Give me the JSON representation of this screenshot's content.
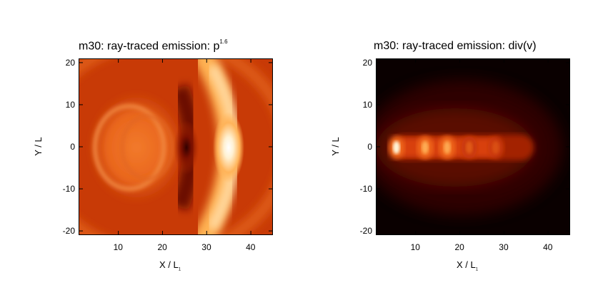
{
  "chart_data": [
    {
      "type": "heatmap",
      "title_main": "m30: ray-traced emission: p",
      "title_sup": "1.6",
      "xlabel_main": "X / L",
      "xlabel_sub": "1",
      "ylabel": "Y / L",
      "xlim": [
        1,
        45
      ],
      "ylim": [
        -21,
        21
      ],
      "xticks": [
        "10",
        "20",
        "30",
        "40"
      ],
      "xtick_values": [
        10,
        20,
        30,
        40
      ],
      "yticks": [
        "20",
        "10",
        "0",
        "-10",
        "-20"
      ],
      "ytick_values": [
        20,
        10,
        0,
        -10,
        -20
      ],
      "colormap": "hot",
      "background_color": "#c83a06",
      "features": [
        {
          "name": "bright bow shock",
          "x": 34.5,
          "y": 0,
          "level": 1.0
        },
        {
          "name": "dark cavity",
          "x": 25,
          "y": 0,
          "level": 0.12
        },
        {
          "name": "inner shell",
          "x": 15,
          "y": 0,
          "level": 0.55
        }
      ]
    },
    {
      "type": "heatmap",
      "title_main": "m30: ray-traced emission: div(v)",
      "xlabel_main": "X / L",
      "xlabel_sub": "1",
      "ylabel": "Y / L",
      "xlim": [
        1,
        45
      ],
      "ylim": [
        -21,
        21
      ],
      "xticks": [
        "10",
        "20",
        "30",
        "40"
      ],
      "xtick_values": [
        10,
        20,
        30,
        40
      ],
      "yticks": [
        "20",
        "10",
        "0",
        "-10",
        "-20"
      ],
      "ytick_values": [
        20,
        10,
        0,
        -10,
        -20
      ],
      "colormap": "hot",
      "background_color": "#0a0000",
      "features": [
        {
          "name": "jet knot",
          "x": 5.5,
          "y": 0,
          "level": 1.0
        },
        {
          "name": "jet knot",
          "x": 12,
          "y": 0,
          "level": 0.9
        },
        {
          "name": "jet knot",
          "x": 17,
          "y": 0,
          "level": 0.85
        },
        {
          "name": "jet knot",
          "x": 22,
          "y": 0,
          "level": 0.6
        },
        {
          "name": "jet knot",
          "x": 28,
          "y": 0,
          "level": 0.4
        }
      ]
    }
  ]
}
